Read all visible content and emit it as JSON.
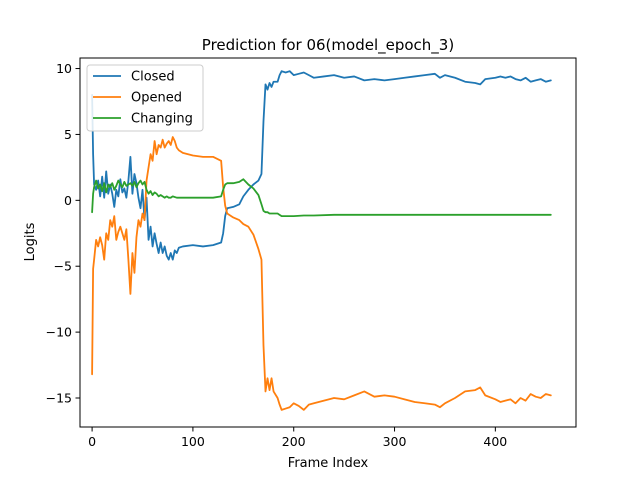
{
  "chart_data": {
    "type": "line",
    "title": "Prediction for 06(model_epoch_3)",
    "xlabel": "Frame Index",
    "ylabel": "Logits",
    "xlim": [
      -12,
      480
    ],
    "ylim": [
      -17.2,
      10.8
    ],
    "xticks": [
      0,
      100,
      200,
      300,
      400
    ],
    "yticks": [
      10,
      5,
      0,
      -5,
      -10,
      -15
    ],
    "grid": false,
    "legend_position": "upper-left",
    "series": [
      {
        "name": "Closed",
        "color": "#1f77b4",
        "points": [
          [
            0,
            8
          ],
          [
            1,
            3.5
          ],
          [
            2,
            1.2
          ],
          [
            4,
            0.8
          ],
          [
            6,
            1.5
          ],
          [
            8,
            0.3
          ],
          [
            10,
            1.8
          ],
          [
            12,
            0.2
          ],
          [
            14,
            2.2
          ],
          [
            16,
            0.5
          ],
          [
            18,
            1.2
          ],
          [
            20,
            0.5
          ],
          [
            22,
            -0.5
          ],
          [
            24,
            0.8
          ],
          [
            26,
            0.3
          ],
          [
            28,
            1.6
          ],
          [
            30,
            0.6
          ],
          [
            32,
            0.9
          ],
          [
            34,
            0.2
          ],
          [
            36,
            1.5
          ],
          [
            38,
            3.3
          ],
          [
            40,
            0.5
          ],
          [
            42,
            2
          ],
          [
            44,
            1.3
          ],
          [
            46,
            0.2
          ],
          [
            48,
            -0.6
          ],
          [
            50,
            0.8
          ],
          [
            52,
            -1.5
          ],
          [
            54,
            0.2
          ],
          [
            56,
            -3
          ],
          [
            58,
            -2
          ],
          [
            60,
            -3.5
          ],
          [
            62,
            -2.5
          ],
          [
            64,
            -3.3
          ],
          [
            66,
            -4
          ],
          [
            68,
            -3.2
          ],
          [
            70,
            -4
          ],
          [
            72,
            -3.5
          ],
          [
            74,
            -4.2
          ],
          [
            76,
            -4.5
          ],
          [
            78,
            -4
          ],
          [
            80,
            -4.5
          ],
          [
            82,
            -3.8
          ],
          [
            84,
            -4
          ],
          [
            86,
            -3.6
          ],
          [
            90,
            -3.5
          ],
          [
            100,
            -3.4
          ],
          [
            110,
            -3.5
          ],
          [
            120,
            -3.4
          ],
          [
            128,
            -3.2
          ],
          [
            130,
            -2.5
          ],
          [
            132,
            -1.2
          ],
          [
            134,
            -0.6
          ],
          [
            140,
            -0.5
          ],
          [
            146,
            -0.3
          ],
          [
            150,
            0.3
          ],
          [
            155,
            0.8
          ],
          [
            160,
            1.2
          ],
          [
            165,
            1.5
          ],
          [
            168,
            2
          ],
          [
            170,
            6
          ],
          [
            172,
            8.8
          ],
          [
            174,
            8.4
          ],
          [
            176,
            8.9
          ],
          [
            178,
            8.6
          ],
          [
            180,
            9
          ],
          [
            184,
            9
          ],
          [
            186,
            9.5
          ],
          [
            188,
            9.8
          ],
          [
            192,
            9.7
          ],
          [
            196,
            9.8
          ],
          [
            200,
            9.5
          ],
          [
            205,
            9.6
          ],
          [
            210,
            9.7
          ],
          [
            215,
            9.5
          ],
          [
            220,
            9.3
          ],
          [
            230,
            9.4
          ],
          [
            240,
            9.5
          ],
          [
            250,
            9.3
          ],
          [
            260,
            9.4
          ],
          [
            270,
            9.1
          ],
          [
            280,
            9.2
          ],
          [
            290,
            9.1
          ],
          [
            300,
            9.2
          ],
          [
            310,
            9.3
          ],
          [
            320,
            9.4
          ],
          [
            330,
            9.5
          ],
          [
            340,
            9.6
          ],
          [
            345,
            9.3
          ],
          [
            350,
            9.5
          ],
          [
            360,
            9.3
          ],
          [
            370,
            9
          ],
          [
            380,
            8.9
          ],
          [
            385,
            8.8
          ],
          [
            390,
            9.2
          ],
          [
            400,
            9.3
          ],
          [
            405,
            9.4
          ],
          [
            410,
            9.3
          ],
          [
            415,
            9.4
          ],
          [
            420,
            9.2
          ],
          [
            425,
            9.1
          ],
          [
            430,
            9.3
          ],
          [
            435,
            9
          ],
          [
            440,
            9.1
          ],
          [
            445,
            9.2
          ],
          [
            450,
            9
          ],
          [
            455,
            9.1
          ]
        ]
      },
      {
        "name": "Opened",
        "color": "#ff7f0e",
        "points": [
          [
            0,
            -13.2
          ],
          [
            1,
            -5.2
          ],
          [
            2,
            -4.5
          ],
          [
            4,
            -3
          ],
          [
            6,
            -3.5
          ],
          [
            8,
            -2.8
          ],
          [
            10,
            -3.4
          ],
          [
            12,
            -4.5
          ],
          [
            14,
            -2.5
          ],
          [
            16,
            -3
          ],
          [
            18,
            -1.5
          ],
          [
            20,
            -2
          ],
          [
            22,
            -1.2
          ],
          [
            24,
            -3
          ],
          [
            26,
            -2.4
          ],
          [
            28,
            -2
          ],
          [
            30,
            -2.5
          ],
          [
            32,
            -3
          ],
          [
            34,
            -2.2
          ],
          [
            36,
            -4.5
          ],
          [
            38,
            -7.1
          ],
          [
            40,
            -4
          ],
          [
            42,
            -5.5
          ],
          [
            44,
            -2.8
          ],
          [
            46,
            -1.5
          ],
          [
            48,
            -2
          ],
          [
            50,
            -1
          ],
          [
            52,
            -1.5
          ],
          [
            54,
            1.5
          ],
          [
            56,
            2.5
          ],
          [
            58,
            3.5
          ],
          [
            60,
            3
          ],
          [
            62,
            4.5
          ],
          [
            64,
            3.5
          ],
          [
            66,
            4.2
          ],
          [
            68,
            4
          ],
          [
            70,
            4.6
          ],
          [
            72,
            4
          ],
          [
            74,
            4.3
          ],
          [
            76,
            4.5
          ],
          [
            78,
            4.2
          ],
          [
            80,
            4.8
          ],
          [
            82,
            4.5
          ],
          [
            84,
            4
          ],
          [
            86,
            3.8
          ],
          [
            90,
            3.6
          ],
          [
            100,
            3.4
          ],
          [
            110,
            3.3
          ],
          [
            120,
            3.3
          ],
          [
            128,
            3
          ],
          [
            130,
            1
          ],
          [
            132,
            -0.4
          ],
          [
            134,
            -1
          ],
          [
            140,
            -1.3
          ],
          [
            146,
            -1.5
          ],
          [
            150,
            -1.8
          ],
          [
            155,
            -2
          ],
          [
            160,
            -2.6
          ],
          [
            165,
            -3.7
          ],
          [
            168,
            -4.5
          ],
          [
            170,
            -11
          ],
          [
            172,
            -14.5
          ],
          [
            174,
            -13.5
          ],
          [
            176,
            -14.4
          ],
          [
            178,
            -13.5
          ],
          [
            180,
            -14.5
          ],
          [
            184,
            -15
          ],
          [
            186,
            -15.5
          ],
          [
            188,
            -15.9
          ],
          [
            192,
            -15.8
          ],
          [
            196,
            -15.7
          ],
          [
            200,
            -15.4
          ],
          [
            205,
            -15.6
          ],
          [
            210,
            -15.9
          ],
          [
            215,
            -15.5
          ],
          [
            220,
            -15.4
          ],
          [
            230,
            -15.2
          ],
          [
            240,
            -15
          ],
          [
            250,
            -15.1
          ],
          [
            260,
            -14.8
          ],
          [
            270,
            -14.5
          ],
          [
            280,
            -14.9
          ],
          [
            290,
            -14.8
          ],
          [
            300,
            -14.9
          ],
          [
            310,
            -15.1
          ],
          [
            320,
            -15.3
          ],
          [
            330,
            -15.4
          ],
          [
            340,
            -15.5
          ],
          [
            345,
            -15.7
          ],
          [
            350,
            -15.4
          ],
          [
            360,
            -15
          ],
          [
            370,
            -14.5
          ],
          [
            380,
            -14.4
          ],
          [
            385,
            -14.2
          ],
          [
            390,
            -14.8
          ],
          [
            400,
            -15.1
          ],
          [
            405,
            -15.3
          ],
          [
            410,
            -15.2
          ],
          [
            415,
            -15.1
          ],
          [
            420,
            -15.4
          ],
          [
            425,
            -15
          ],
          [
            430,
            -15.2
          ],
          [
            435,
            -14.7
          ],
          [
            440,
            -14.9
          ],
          [
            445,
            -15
          ],
          [
            450,
            -14.7
          ],
          [
            455,
            -14.8
          ]
        ]
      },
      {
        "name": "Changing",
        "color": "#2ca02c",
        "points": [
          [
            0,
            -0.9
          ],
          [
            1,
            0.5
          ],
          [
            2,
            1
          ],
          [
            4,
            1.5
          ],
          [
            6,
            0.9
          ],
          [
            8,
            1.2
          ],
          [
            10,
            0.7
          ],
          [
            12,
            1.3
          ],
          [
            14,
            0.6
          ],
          [
            16,
            1.2
          ],
          [
            18,
            1
          ],
          [
            20,
            1.3
          ],
          [
            22,
            0.8
          ],
          [
            24,
            1.1
          ],
          [
            26,
            1.5
          ],
          [
            28,
            1.2
          ],
          [
            30,
            1
          ],
          [
            32,
            1.4
          ],
          [
            34,
            1.1
          ],
          [
            36,
            1.2
          ],
          [
            38,
            1.3
          ],
          [
            40,
            1.1
          ],
          [
            42,
            1.4
          ],
          [
            44,
            1
          ],
          [
            46,
            1.3
          ],
          [
            48,
            1.5
          ],
          [
            50,
            1.2
          ],
          [
            52,
            1.4
          ],
          [
            54,
            0.8
          ],
          [
            56,
            0.5
          ],
          [
            58,
            0.7
          ],
          [
            60,
            0.4
          ],
          [
            62,
            0.6
          ],
          [
            64,
            0.5
          ],
          [
            66,
            0.3
          ],
          [
            68,
            0.4
          ],
          [
            70,
            0.3
          ],
          [
            72,
            0.2
          ],
          [
            74,
            0.3
          ],
          [
            76,
            0.2
          ],
          [
            78,
            0.2
          ],
          [
            80,
            0.3
          ],
          [
            84,
            0.2
          ],
          [
            90,
            0.2
          ],
          [
            100,
            0.2
          ],
          [
            110,
            0.2
          ],
          [
            120,
            0.2
          ],
          [
            128,
            0.3
          ],
          [
            130,
            0.8
          ],
          [
            132,
            1.2
          ],
          [
            134,
            1.3
          ],
          [
            140,
            1.3
          ],
          [
            146,
            1.4
          ],
          [
            150,
            1.6
          ],
          [
            155,
            1.2
          ],
          [
            160,
            0.9
          ],
          [
            165,
            0.4
          ],
          [
            168,
            -0.3
          ],
          [
            170,
            -0.8
          ],
          [
            172,
            -0.9
          ],
          [
            174,
            -0.9
          ],
          [
            176,
            -1
          ],
          [
            180,
            -1
          ],
          [
            184,
            -1
          ],
          [
            186,
            -1.1
          ],
          [
            188,
            -1.2
          ],
          [
            196,
            -1.2
          ],
          [
            200,
            -1.2
          ],
          [
            210,
            -1.15
          ],
          [
            220,
            -1.15
          ],
          [
            240,
            -1.1
          ],
          [
            260,
            -1.1
          ],
          [
            280,
            -1.1
          ],
          [
            300,
            -1.1
          ],
          [
            320,
            -1.1
          ],
          [
            340,
            -1.1
          ],
          [
            360,
            -1.1
          ],
          [
            380,
            -1.1
          ],
          [
            400,
            -1.1
          ],
          [
            420,
            -1.1
          ],
          [
            440,
            -1.1
          ],
          [
            455,
            -1.1
          ]
        ]
      }
    ]
  }
}
